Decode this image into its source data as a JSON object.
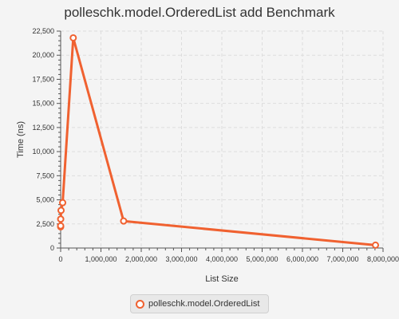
{
  "chart_data": {
    "type": "line",
    "title": "polleschk.model.OrderedList add Benchmark",
    "xlabel": "List Size",
    "ylabel": "Time (ns)",
    "xlim": [
      0,
      8000000
    ],
    "ylim": [
      0,
      22500
    ],
    "x_ticks": [
      "0",
      "1,000,000",
      "2,000,000",
      "3,000,000",
      "4,000,000",
      "5,000,000",
      "6,000,000",
      "7,000,000",
      "8,000,000"
    ],
    "y_ticks": [
      "0",
      "2,500",
      "5,000",
      "7,500",
      "10,000",
      "12,500",
      "15,000",
      "17,500",
      "20,000",
      "22,500"
    ],
    "grid": true,
    "legend_position": "bottom",
    "series": [
      {
        "name": "polleschk.model.OrderedList",
        "color": "#f06130",
        "x": [
          10,
          100,
          1000,
          10000,
          50000,
          312500,
          1562500,
          7812500
        ],
        "y": [
          2200,
          2300,
          3000,
          3900,
          4700,
          21800,
          2800,
          300
        ]
      }
    ]
  },
  "colors": {
    "background": "#f4f4f4",
    "series": "#f06130",
    "grid": "#dddddd",
    "axis": "#555555"
  }
}
